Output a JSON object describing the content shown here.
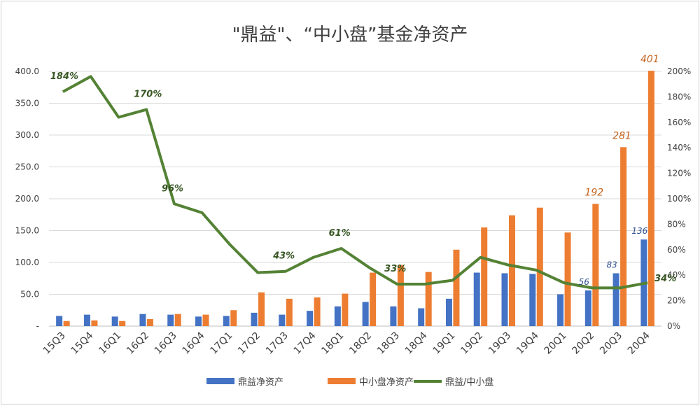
{
  "chart_data": {
    "type": "bar",
    "title": "\"鼎益\"、“中小盘”基金净资产",
    "categories": [
      "15Q3",
      "15Q4",
      "16Q1",
      "16Q2",
      "16Q3",
      "16Q4",
      "17Q1",
      "17Q2",
      "17Q3",
      "17Q4",
      "18Q1",
      "18Q2",
      "18Q3",
      "18Q4",
      "19Q1",
      "19Q2",
      "19Q3",
      "19Q4",
      "20Q1",
      "20Q2",
      "20Q3",
      "20Q4"
    ],
    "y_left": {
      "ticks": [
        "400.0",
        "350.0",
        "300.0",
        "250.0",
        "200.0",
        "150.0",
        "100.0",
        "50.0",
        "-"
      ],
      "range": [
        0,
        400
      ]
    },
    "y_right": {
      "ticks": [
        "200%",
        "180%",
        "160%",
        "140%",
        "120%",
        "100%",
        "80%",
        "60%",
        "40%",
        "20%",
        "0%"
      ],
      "range": [
        0,
        200
      ]
    },
    "grid": true,
    "legend_position": "bottom",
    "series": [
      {
        "name": "鼎益净资产",
        "kind": "bar",
        "axis": "left",
        "color": "#4472c4",
        "values": [
          16,
          18,
          15,
          19,
          18,
          15,
          16,
          21,
          18,
          24,
          31,
          38,
          31,
          28,
          43,
          84,
          83,
          82,
          50,
          56,
          83,
          136
        ]
      },
      {
        "name": "中小盘净资产",
        "kind": "bar",
        "axis": "left",
        "color": "#ed7d31",
        "values": [
          8,
          9,
          8,
          11,
          19,
          18,
          25,
          53,
          43,
          45,
          51,
          84,
          96,
          85,
          120,
          155,
          174,
          186,
          147,
          192,
          281,
          401
        ]
      },
      {
        "name": "鼎益/中小盘",
        "kind": "line",
        "axis": "right",
        "color": "#548235",
        "values": [
          184,
          196,
          164,
          170,
          96,
          89,
          64,
          42,
          43,
          54,
          61,
          46,
          33,
          33,
          36,
          54,
          48,
          44,
          34,
          30,
          30,
          34
        ]
      }
    ],
    "annotations": [
      {
        "series": 0,
        "index": 19,
        "text": "56"
      },
      {
        "series": 0,
        "index": 20,
        "text": "83"
      },
      {
        "series": 0,
        "index": 21,
        "text": "136"
      },
      {
        "series": 1,
        "index": 19,
        "text": "192"
      },
      {
        "series": 1,
        "index": 20,
        "text": "281"
      },
      {
        "series": 1,
        "index": 21,
        "text": "401"
      },
      {
        "series": 2,
        "index": 0,
        "text": "184%"
      },
      {
        "series": 2,
        "index": 3,
        "text": "170%"
      },
      {
        "series": 2,
        "index": 4,
        "text": "96%"
      },
      {
        "series": 2,
        "index": 8,
        "text": "43%"
      },
      {
        "series": 2,
        "index": 10,
        "text": "61%"
      },
      {
        "series": 2,
        "index": 12,
        "text": "33%"
      },
      {
        "series": 2,
        "index": 21,
        "text": "34%"
      }
    ]
  }
}
